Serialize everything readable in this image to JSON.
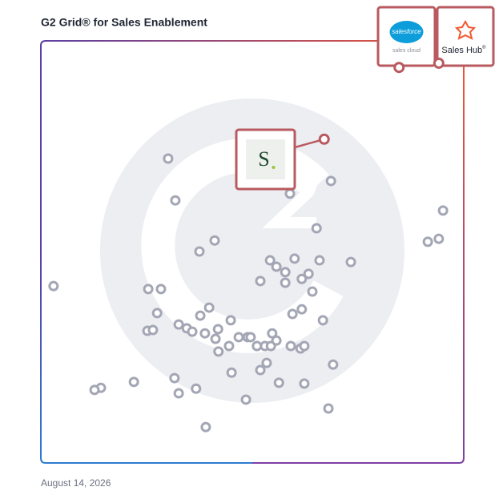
{
  "chart_data": {
    "type": "scatter",
    "title": "G2 Grid® for Sales Enablement",
    "date": "August 14, 2026",
    "xlim": [
      0,
      100
    ],
    "ylim": [
      0,
      100
    ],
    "color": "#a3a6b4",
    "highlight_color": "#b85a5f",
    "x": [
      30.1,
      31.8,
      41.1,
      37.5,
      3.0,
      25.4,
      28.4,
      27.5,
      37.7,
      39.8,
      44.9,
      32.6,
      34.5,
      35.8,
      38.8,
      41.9,
      41.3,
      25.2,
      26.5,
      44.5,
      42.0,
      46.8,
      48.9,
      49.6,
      51.1,
      53.0,
      54.4,
      55.7,
      54.7,
      59.1,
      61.4,
      62.3,
      59.5,
      61.7,
      66.7,
      64.2,
      61.7,
      63.3,
      57.8,
      55.7,
      54.2,
      60.0,
      65.9,
      73.3,
      51.9,
      57.8,
      58.9,
      68.6,
      65.2,
      95.1,
      94.1,
      91.5,
      69.1,
      53.4,
      51.9,
      45.1,
      31.6,
      32.6,
      36.7,
      22.0,
      14.2,
      12.7,
      56.3,
      62.3,
      48.5,
      68.0,
      39.0
    ],
    "values": [
      72.1,
      62.2,
      52.7,
      50.1,
      41.9,
      41.2,
      41.2,
      35.5,
      34.9,
      36.8,
      33.8,
      32.8,
      31.9,
      31.1,
      30.7,
      31.7,
      29.4,
      31.3,
      31.5,
      27.7,
      26.4,
      29.8,
      29.8,
      29.8,
      27.7,
      27.7,
      27.7,
      29.0,
      30.7,
      27.7,
      27.1,
      27.7,
      35.3,
      36.4,
      33.8,
      40.6,
      43.6,
      44.8,
      45.2,
      46.5,
      48.0,
      48.4,
      48.0,
      47.6,
      43.1,
      42.7,
      63.8,
      66.8,
      55.6,
      59.8,
      53.1,
      52.4,
      23.3,
      23.7,
      22.0,
      21.4,
      20.1,
      16.5,
      17.6,
      19.2,
      17.8,
      17.3,
      19.0,
      18.8,
      15.0,
      12.9,
      8.5
    ],
    "featured": [
      {
        "logo": "S",
        "x": 67.0,
        "y": 76.7
      },
      {
        "logo": "salesforce",
        "caption": "sales cloud",
        "x": 84.7,
        "y": 93.7
      },
      {
        "logo": "Sales Hub",
        "mark": "®",
        "x": 94.1,
        "y": 94.7
      }
    ]
  }
}
